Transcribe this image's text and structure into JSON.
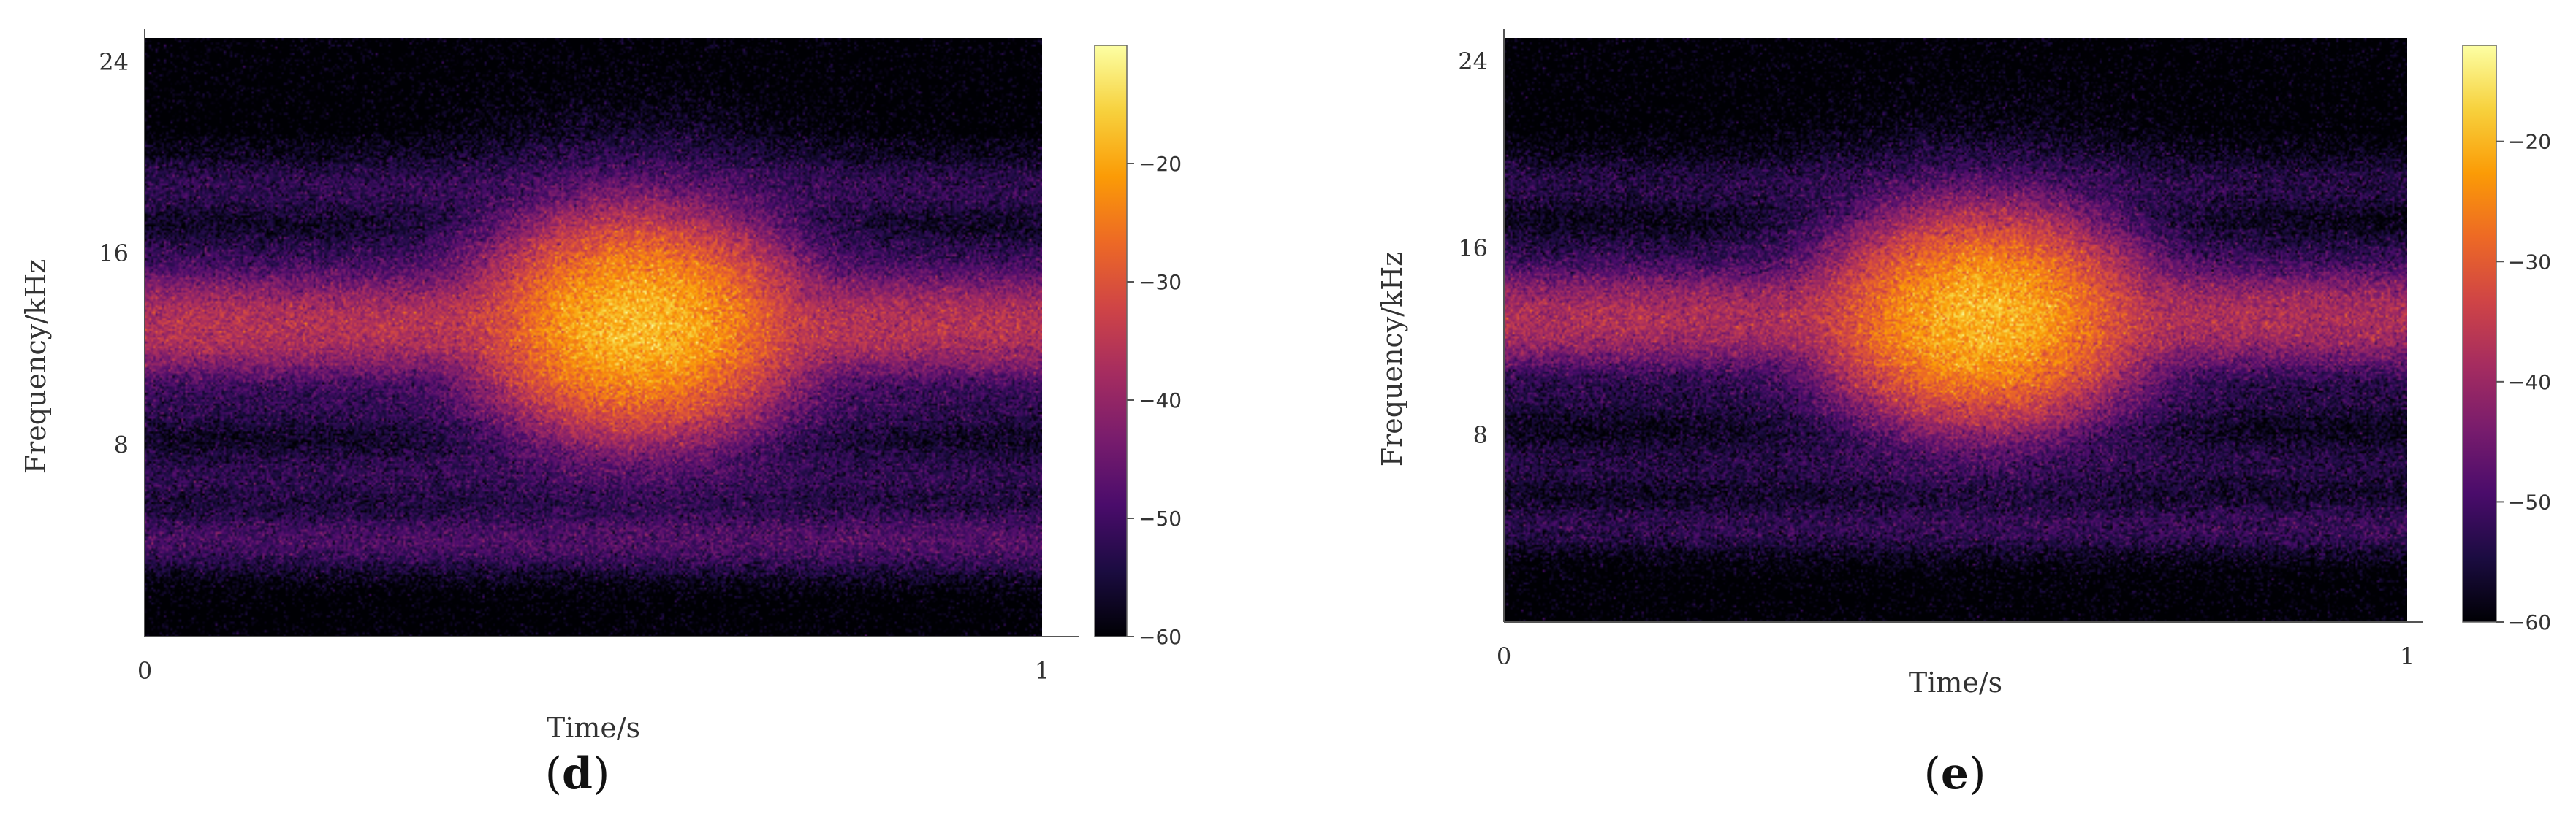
{
  "chart_data": [
    {
      "type": "heatmap",
      "panel_label": "d",
      "xlabel": "Time/s",
      "ylabel": "Frequency/kHz",
      "xlim": [
        0,
        1
      ],
      "ylim": [
        0,
        25
      ],
      "x_ticks": [
        {
          "value": 0,
          "label": "0"
        },
        {
          "value": 1,
          "label": "1"
        }
      ],
      "y_ticks": [
        {
          "value": 8,
          "label": "8"
        },
        {
          "value": 16,
          "label": "16"
        },
        {
          "value": 24,
          "label": "24"
        }
      ],
      "colorbar": {
        "range": [
          -60,
          -10
        ],
        "ticks": [
          {
            "value": -20,
            "label": "−20"
          },
          {
            "value": -30,
            "label": "−30"
          },
          {
            "value": -40,
            "label": "−40"
          },
          {
            "value": -50,
            "label": "−50"
          },
          {
            "value": -60,
            "label": "−60"
          }
        ],
        "colormap": [
          "#000004",
          "#1b0c41",
          "#4a0c6b",
          "#781c6d",
          "#a52c60",
          "#cf4446",
          "#ed6925",
          "#fb9b06",
          "#f7d13d",
          "#fcffa4"
        ]
      },
      "features": {
        "main_band_center_khz": 13,
        "main_band_level_db": -36,
        "burst_center_time_s": 0.55,
        "burst_peak_level_db": -18,
        "noise_band_khz": [
          3,
          21
        ],
        "noise_level_db": -55,
        "low_band_center_khz": 4,
        "low_band_level_db": -50,
        "floor_level_db": -62
      }
    },
    {
      "type": "heatmap",
      "panel_label": "e",
      "xlabel": "Time/s",
      "ylabel": "Frequency/kHz",
      "xlim": [
        0,
        1
      ],
      "ylim": [
        0,
        25
      ],
      "x_ticks": [
        {
          "value": 0,
          "label": "0"
        },
        {
          "value": 1,
          "label": "1"
        }
      ],
      "y_ticks": [
        {
          "value": 8,
          "label": "8"
        },
        {
          "value": 16,
          "label": "16"
        },
        {
          "value": 24,
          "label": "24"
        }
      ],
      "colorbar": {
        "range": [
          -60,
          -12
        ],
        "ticks": [
          {
            "value": -20,
            "label": "−20"
          },
          {
            "value": -30,
            "label": "−30"
          },
          {
            "value": -40,
            "label": "−40"
          },
          {
            "value": -50,
            "label": "−50"
          },
          {
            "value": -60,
            "label": "−60"
          }
        ],
        "colormap": [
          "#000004",
          "#1b0c41",
          "#4a0c6b",
          "#781c6d",
          "#a52c60",
          "#cf4446",
          "#ed6925",
          "#fb9b06",
          "#f7d13d",
          "#fcffa4"
        ]
      },
      "features": {
        "main_band_center_khz": 13,
        "main_band_level_db": -38,
        "burst_center_time_s": 0.53,
        "burst_peak_level_db": -20,
        "noise_band_khz": [
          3,
          21
        ],
        "noise_level_db": -57,
        "low_band_center_khz": 4,
        "low_band_level_db": -55,
        "floor_level_db": -62
      }
    }
  ]
}
